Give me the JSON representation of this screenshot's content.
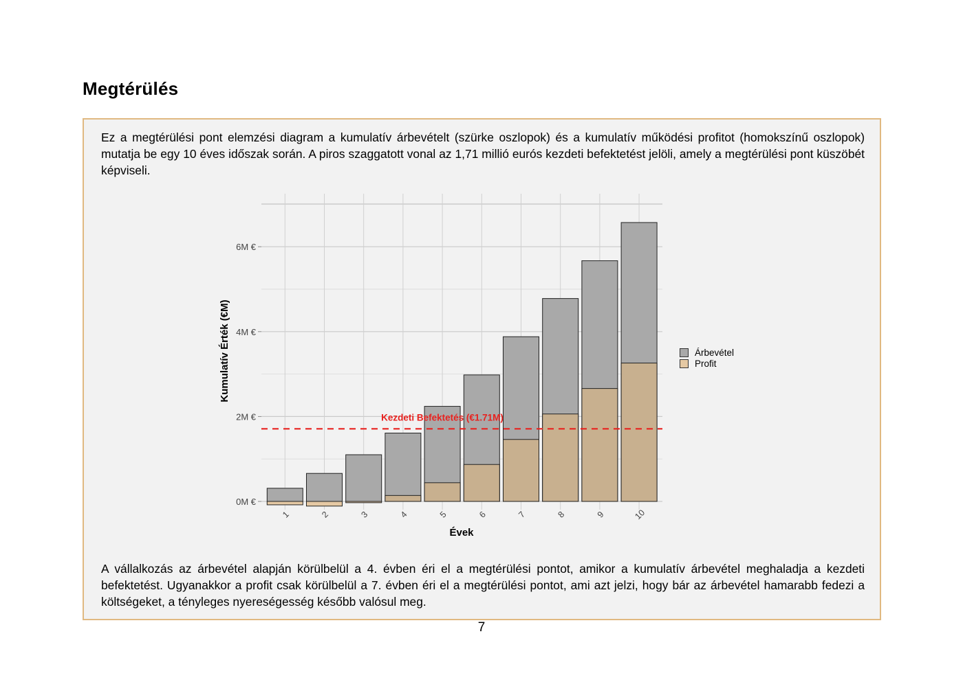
{
  "page": {
    "title": "Megtérülés",
    "intro": "Ez a megtérülési pont elemzési diagram a kumulatív árbevételt (szürke oszlopok) és a kumulatív működési profitot (homokszínű oszlopok) mutatja be egy 10 éves időszak során. A piros szaggatott vonal az 1,71 millió eurós kezdeti befektetést jelöli, amely a megtérülési pont küszöbét képviseli.",
    "outro": "A vállalkozás az árbevétel alapján körülbelül a 4. évben éri el a megtérülési pontot, amikor a kumulatív árbevétel meghaladja a kezdeti befektetést. Ugyanakkor a profit csak körülbelül a 7. évben éri el a megtérülési pontot, ami azt jelzi, hogy bár az árbevétel hamarabb fedezi a költségeket, a tényleges nyereségesség később valósul meg.",
    "page_number": "7"
  },
  "chart_data": {
    "type": "bar",
    "title": "",
    "xlabel": "Évek",
    "ylabel": "Kumulatív Érték (€M)",
    "categories": [
      "1",
      "2",
      "3",
      "4",
      "5",
      "6",
      "7",
      "8",
      "9",
      "10"
    ],
    "series": [
      {
        "name": "Árbevétel",
        "values": [
          0.31,
          0.66,
          1.1,
          1.61,
          2.24,
          2.98,
          3.88,
          4.78,
          5.67,
          6.57
        ],
        "color": "#a9a9a9"
      },
      {
        "name": "Profit",
        "values": [
          -0.08,
          -0.11,
          -0.03,
          0.14,
          0.44,
          0.87,
          1.46,
          2.06,
          2.66,
          3.26
        ],
        "color": "#c8b08f",
        "negative_color": "#e5c9a4"
      }
    ],
    "ylim": [
      -0.2,
      7.2
    ],
    "yticks": [
      0,
      2,
      4,
      6
    ],
    "ytick_labels": [
      "0M €",
      "2M €",
      "4M €",
      "6M €"
    ],
    "reference_line": {
      "value": 1.71,
      "label": "Kezdeti Befektetés (€1.71M)",
      "color": "#e8221f",
      "style": "dashed"
    },
    "grid": true,
    "legend_position": "right",
    "bar_style": "overlapping"
  }
}
